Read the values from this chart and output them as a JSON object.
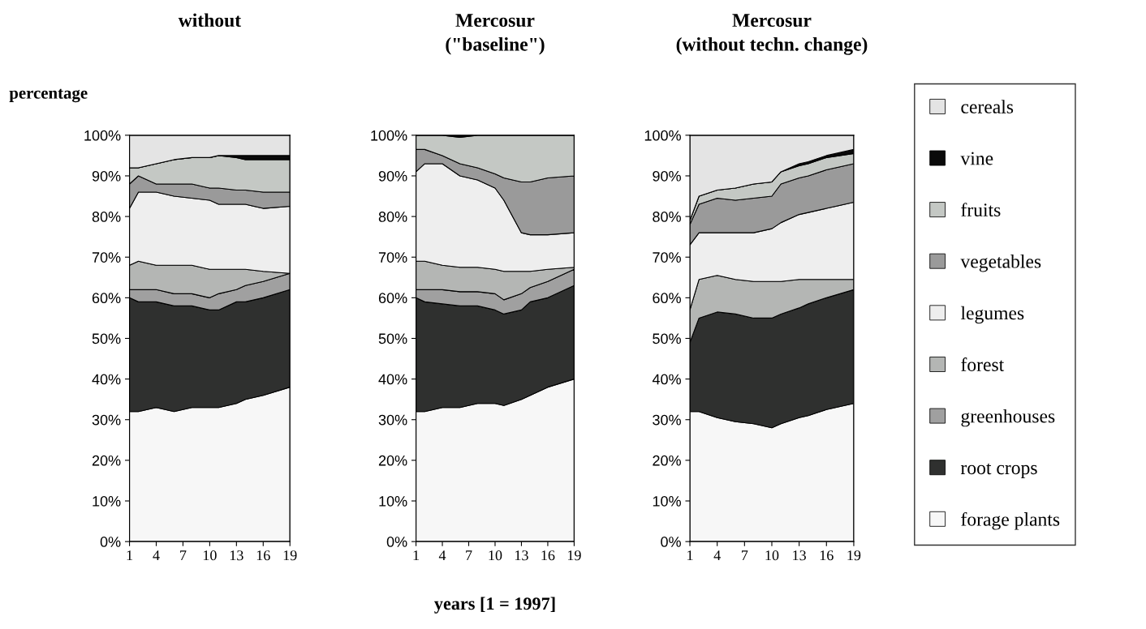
{
  "chart_data": [
    {
      "type": "area",
      "stacked": true,
      "title": "without",
      "ylabel": "percentage",
      "legend": "right",
      "x": [
        1,
        2,
        4,
        6,
        8,
        10,
        11,
        13,
        14,
        16,
        19
      ],
      "xlim": [
        1,
        19
      ],
      "xticks": [
        1,
        4,
        7,
        10,
        13,
        16,
        19
      ],
      "ylim": [
        0,
        100
      ],
      "yticks": [
        {
          "value": 0,
          "label": "0%"
        },
        {
          "value": 10,
          "label": "10%"
        },
        {
          "value": 20,
          "label": "20%"
        },
        {
          "value": 30,
          "label": "30%"
        },
        {
          "value": 40,
          "label": "40%"
        },
        {
          "value": 50,
          "label": "50%"
        },
        {
          "value": 60,
          "label": "60%"
        },
        {
          "value": 70,
          "label": "70%"
        },
        {
          "value": 80,
          "label": "80%"
        },
        {
          "value": 90,
          "label": "90%"
        },
        {
          "value": 100,
          "label": "100%"
        }
      ],
      "grid": false,
      "series": [
        {
          "name": "forage plants",
          "color": "#f7f7f7",
          "values": [
            32,
            32,
            33,
            32,
            33,
            33,
            33,
            34,
            35,
            36,
            38
          ]
        },
        {
          "name": "root crops",
          "color": "#2f302f",
          "values": [
            28,
            27,
            26,
            26,
            25,
            24,
            24,
            25,
            24,
            24,
            24
          ]
        },
        {
          "name": "greenhouses",
          "color": "#a0a0a0",
          "values": [
            2,
            3,
            3,
            3,
            3,
            3,
            4,
            3,
            4,
            4,
            4
          ]
        },
        {
          "name": "forest",
          "color": "#b4b6b4",
          "values": [
            6,
            7,
            6,
            7,
            7,
            7,
            6,
            5,
            4,
            2.5,
            0
          ]
        },
        {
          "name": "legumes",
          "color": "#eeeeee",
          "values": [
            14,
            17,
            18,
            17,
            16.5,
            17,
            16,
            16,
            16,
            15.5,
            16.5
          ]
        },
        {
          "name": "vegetables",
          "color": "#9a9a9a",
          "values": [
            6,
            4,
            2,
            3,
            3.5,
            3,
            4,
            3.5,
            3.5,
            4,
            3.5
          ]
        },
        {
          "name": "fruits",
          "color": "#c4c8c4",
          "values": [
            4,
            2,
            5,
            6,
            6.5,
            7.5,
            8,
            8,
            7.5,
            8,
            8
          ]
        },
        {
          "name": "vine",
          "color": "#0a0a0a",
          "values": [
            0,
            0,
            0,
            0,
            0,
            0,
            0,
            0.5,
            1,
            1,
            1
          ]
        },
        {
          "name": "cereals",
          "color": "#e4e4e4",
          "values": [
            8,
            8,
            7,
            6,
            5.5,
            5.5,
            5,
            5,
            5,
            5,
            5
          ]
        }
      ]
    },
    {
      "type": "area",
      "stacked": true,
      "title": "Mercosur\n(\"baseline\")",
      "xlabel": "years [1 = 1997]",
      "x": [
        1,
        2,
        4,
        6,
        8,
        10,
        11,
        13,
        14,
        16,
        19
      ],
      "xlim": [
        1,
        19
      ],
      "xticks": [
        1,
        4,
        7,
        10,
        13,
        16,
        19
      ],
      "ylim": [
        0,
        100
      ],
      "yticks": [
        {
          "value": 0,
          "label": "0%"
        },
        {
          "value": 10,
          "label": "10%"
        },
        {
          "value": 20,
          "label": "20%"
        },
        {
          "value": 30,
          "label": "30%"
        },
        {
          "value": 40,
          "label": "40%"
        },
        {
          "value": 50,
          "label": "50%"
        },
        {
          "value": 60,
          "label": "60%"
        },
        {
          "value": 70,
          "label": "70%"
        },
        {
          "value": 80,
          "label": "80%"
        },
        {
          "value": 90,
          "label": "90%"
        },
        {
          "value": 100,
          "label": "100%"
        }
      ],
      "grid": false,
      "series": [
        {
          "color": "#f7f7f7",
          "values": [
            32,
            32,
            33,
            33,
            34,
            34,
            33.5,
            35,
            36,
            38,
            40
          ]
        },
        {
          "color": "#2f302f",
          "values": [
            28,
            27,
            25.5,
            25,
            24,
            23,
            22.5,
            22,
            23,
            22,
            23
          ]
        },
        {
          "color": "#a0a0a0",
          "values": [
            2,
            3,
            3.5,
            3.5,
            3.5,
            4,
            3.5,
            4,
            3.5,
            4,
            4
          ]
        },
        {
          "color": "#b4b6b4",
          "values": [
            7,
            7,
            6,
            6,
            6,
            6,
            7,
            5.5,
            4,
            3,
            0.5
          ]
        },
        {
          "color": "#eeeeee",
          "values": [
            22,
            24,
            25,
            22.5,
            21.5,
            20,
            17.5,
            9.5,
            9,
            8.5,
            8.5
          ]
        },
        {
          "color": "#9a9a9a",
          "values": [
            5.5,
            3.5,
            2,
            3,
            3,
            3.5,
            5.5,
            12.5,
            13,
            14,
            14
          ]
        },
        {
          "color": "#c4c8c4",
          "values": [
            3.5,
            3.5,
            5,
            6.5,
            8,
            9.5,
            10.5,
            11.5,
            11.5,
            10.5,
            10
          ]
        },
        {
          "color": "#0a0a0a",
          "values": [
            0,
            0,
            0,
            0.5,
            0,
            0,
            0,
            0,
            0,
            0,
            0
          ]
        }
      ]
    },
    {
      "type": "area",
      "stacked": true,
      "title": "Mercosur\n(without techn. change)",
      "x": [
        1,
        2,
        4,
        6,
        8,
        10,
        11,
        13,
        14,
        16,
        19
      ],
      "xlim": [
        1,
        19
      ],
      "xticks": [
        1,
        4,
        7,
        10,
        13,
        16,
        19
      ],
      "ylim": [
        0,
        100
      ],
      "yticks": [
        {
          "value": 0,
          "label": "0%"
        },
        {
          "value": 10,
          "label": "10%"
        },
        {
          "value": 20,
          "label": "20%"
        },
        {
          "value": 30,
          "label": "30%"
        },
        {
          "value": 40,
          "label": "40%"
        },
        {
          "value": 50,
          "label": "50%"
        },
        {
          "value": 60,
          "label": "60%"
        },
        {
          "value": 70,
          "label": "70%"
        },
        {
          "value": 80,
          "label": "80%"
        },
        {
          "value": 90,
          "label": "90%"
        },
        {
          "value": 100,
          "label": "100%"
        }
      ],
      "grid": false,
      "series": [
        {
          "color": "#f7f7f7",
          "values": [
            32,
            32,
            30.5,
            29.5,
            29,
            28,
            29,
            30.5,
            31,
            32.5,
            34
          ]
        },
        {
          "color": "#2f302f",
          "values": [
            17,
            23,
            26,
            26.5,
            26,
            27,
            27,
            27,
            27.5,
            27.5,
            28
          ]
        },
        {
          "color": "#b4b6b4",
          "values": [
            8,
            9.5,
            9,
            8.5,
            9,
            9,
            8,
            7,
            6,
            4.5,
            2.5
          ]
        },
        {
          "color": "#eeeeee",
          "values": [
            16,
            11.5,
            10.5,
            11.5,
            12,
            13,
            14.5,
            16,
            16.5,
            17.5,
            19
          ]
        },
        {
          "color": "#9a9a9a",
          "values": [
            5,
            7,
            8.5,
            8,
            8.5,
            8,
            9.5,
            9,
            9,
            9.5,
            9.5
          ]
        },
        {
          "color": "#c4c8c4",
          "values": [
            1,
            2,
            2,
            3,
            3.5,
            3.5,
            3,
            3,
            3,
            3,
            2.5
          ]
        },
        {
          "color": "#0a0a0a",
          "values": [
            0,
            0,
            0,
            0,
            0,
            0,
            0,
            0.5,
            0.5,
            0.5,
            1
          ]
        },
        {
          "color": "#e4e4e4",
          "values": [
            21,
            15,
            13.5,
            13,
            12,
            11.5,
            9,
            7,
            6.5,
            5,
            3.5
          ]
        }
      ]
    }
  ]
}
